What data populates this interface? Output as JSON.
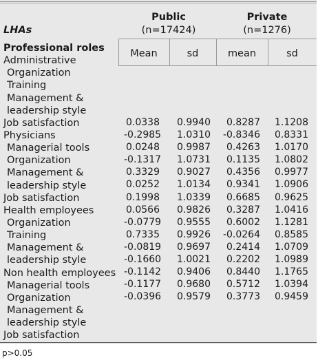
{
  "header": {
    "public_label": "Public",
    "public_n": "(n=17424)",
    "private_label": "Private",
    "private_n": "(n=1276)",
    "lhas_label": "LHAs",
    "col_mean1": "Mean",
    "col_sd1": "sd",
    "col_mean2": "mean",
    "col_sd2": "sd"
  },
  "row_labels": [
    {
      "text": "Professional roles",
      "style": "bold"
    },
    {
      "text": "Administrative",
      "style": "plain"
    },
    {
      "text": "Organization",
      "style": "ind"
    },
    {
      "text": "Training",
      "style": "ind"
    },
    {
      "text": "Management &",
      "style": "ind"
    },
    {
      "text": "leadership style",
      "style": "ind"
    },
    {
      "text": "Job satisfaction",
      "style": "plain"
    },
    {
      "text": "Physicians",
      "style": "plain"
    },
    {
      "text": "Managerial tools",
      "style": "ind"
    },
    {
      "text": "Organization",
      "style": "ind"
    },
    {
      "text": "Management &",
      "style": "ind"
    },
    {
      "text": "leadership style",
      "style": "ind"
    },
    {
      "text": "Job satisfaction",
      "style": "plain"
    },
    {
      "text": "Health employees",
      "style": "plain"
    },
    {
      "text": "Organization",
      "style": "ind"
    },
    {
      "text": "Training",
      "style": "ind"
    },
    {
      "text": "Management &",
      "style": "ind"
    },
    {
      "text": "leadership style",
      "style": "ind"
    },
    {
      "text": "Non health employees",
      "style": "plain"
    },
    {
      "text": "Managerial tools",
      "style": "ind"
    },
    {
      "text": "Organization",
      "style": "ind"
    },
    {
      "text": "Management &",
      "style": "ind"
    },
    {
      "text": "leadership style",
      "style": "ind"
    },
    {
      "text": "Job satisfaction",
      "style": "plain"
    }
  ],
  "values": {
    "public_mean": [
      "0.0338",
      "-0.2985",
      "0.0248",
      "-0.1317",
      "0.3329",
      "0.0252",
      "0.1998",
      "0.0566",
      "-0.0779",
      "0.7335",
      "-0.0819",
      "-0.1660",
      "-0.1142",
      "-0.1177",
      "-0.0396"
    ],
    "public_sd": [
      "0.9940",
      "1.0310",
      "0.9987",
      "1.0731",
      "0.9027",
      "1.0134",
      "1.0339",
      "0.9826",
      "0.9555",
      "0.9926",
      "0.9697",
      "1.0021",
      "0.9406",
      "0.9680",
      "0.9579"
    ],
    "private_mean": [
      "0.8287",
      "-0.8346",
      "0.4263",
      "0.1135",
      "0.4356",
      "0.9341",
      "0.6685",
      "0.3287",
      "0.6002",
      "-0.0264",
      "0.2414",
      "0.2202",
      "0.8440",
      "0.5712",
      "0.3773"
    ],
    "private_sd": [
      "1.1208",
      "0.8331",
      "1.0170",
      "1.0802",
      "0.9977",
      "1.0906",
      "0.9625",
      "1.0416",
      "1.1281",
      "0.8585",
      "1.0709",
      "1.0989",
      "1.1765",
      "1.0394",
      "0.9459"
    ]
  },
  "footnote": "p>0.05"
}
